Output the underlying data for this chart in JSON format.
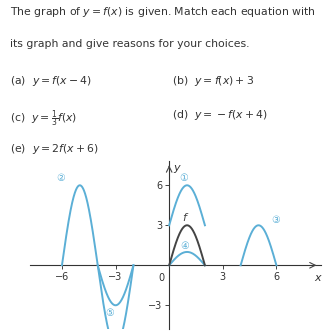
{
  "blue": "#5bafd6",
  "dark": "#444444",
  "lw": 1.4,
  "xlim": [
    -7.8,
    8.5
  ],
  "ylim": [
    -4.8,
    7.8
  ],
  "xticks": [
    -6,
    -3,
    3,
    6
  ],
  "yticks": [
    -3,
    3,
    6
  ],
  "figsize": [
    3.31,
    3.36
  ],
  "dpi": 100,
  "text_lines": [
    "The graph of $y = f(x)$ is given. Match each equation with",
    "its graph and give reasons for your choices."
  ],
  "eq_left": [
    "(a)  $y = f(x-4)$",
    "(c)  $y = \\frac{1}{3}f(x)$",
    "(e)  $y = 2f(x+6)$"
  ],
  "eq_right": [
    "(b)  $y = f(x) + 3$",
    "(d)  $y = -f(x+4)$"
  ],
  "text_fontsize": 7.8,
  "axis_arrow_color": "#333333"
}
